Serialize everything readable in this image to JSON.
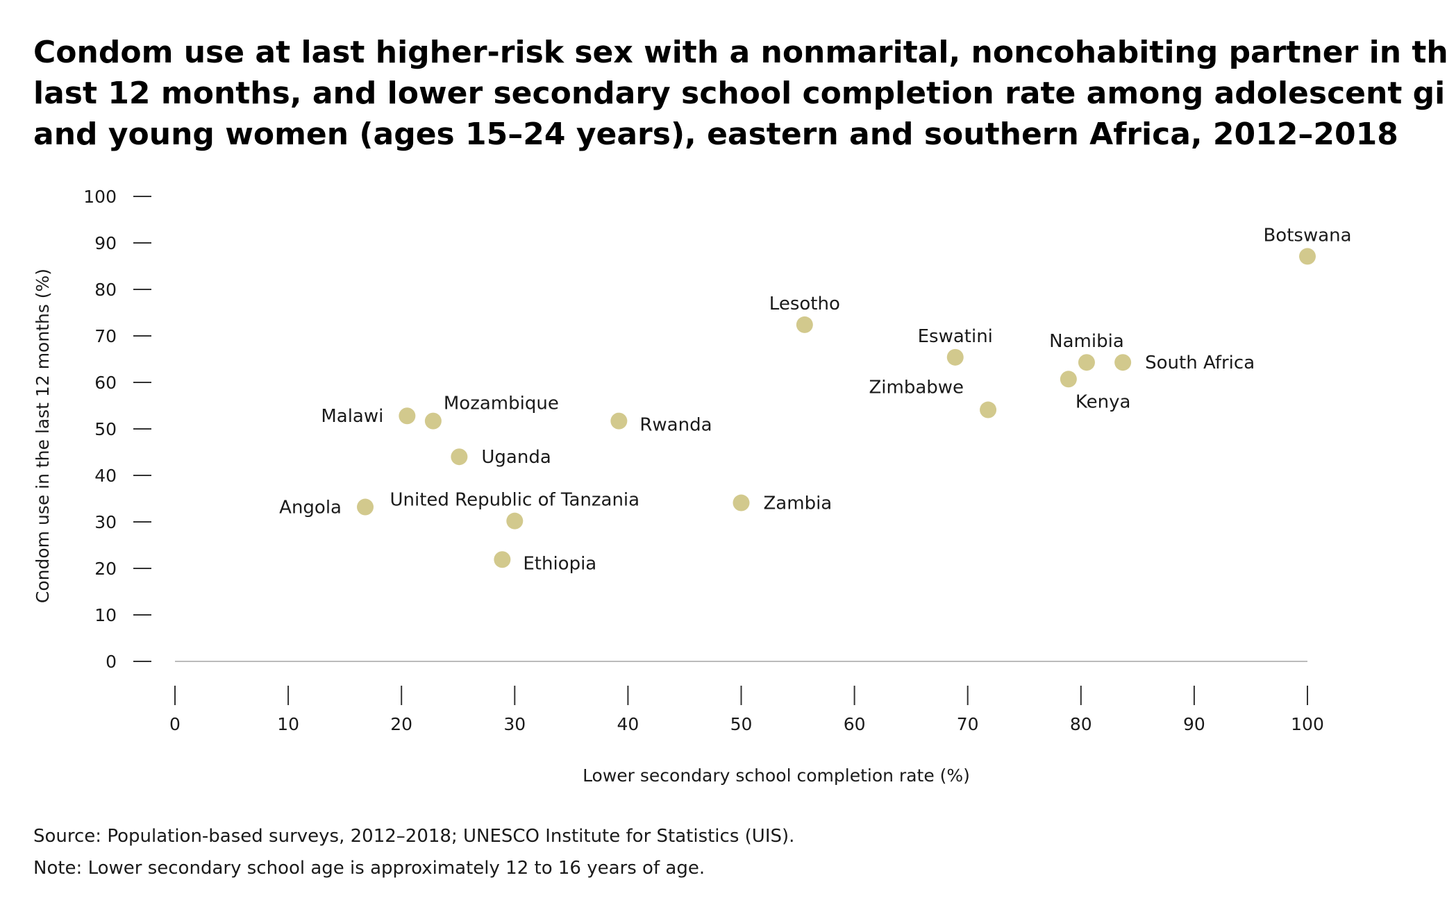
{
  "title_lines": [
    "Condom use at last higher-risk sex with a nonmarital, noncohabiting partner in the",
    "last 12 months, and lower secondary school completion rate among adolescent girls",
    "and young women (ages 15–24 years), eastern and southern Africa, 2012–2018"
  ],
  "colors": {
    "point": "#d2c98d",
    "axis": "#333333",
    "baseline": "#bbbbbb"
  },
  "chart_data": {
    "type": "scatter",
    "title": "Condom use at last higher-risk sex with a nonmarital, noncohabiting partner in the last 12 months, and lower secondary school completion rate among adolescent girls and young women (ages 15–24 years), eastern and southern Africa, 2012–2018",
    "xlabel": "Lower secondary school completion rate (%)",
    "ylabel": "Condom use in the last 12 months (%)",
    "xlim": [
      0,
      100
    ],
    "ylim": [
      0,
      100
    ],
    "xticks": [
      "0",
      "10",
      "20",
      "30",
      "40",
      "50",
      "60",
      "70",
      "80",
      "90",
      "100"
    ],
    "yticks": [
      "0",
      "10",
      "20",
      "30",
      "40",
      "50",
      "60",
      "70",
      "80",
      "90",
      "100"
    ],
    "grid": false,
    "points": [
      {
        "label": "Angola",
        "x": 16.8,
        "y": 33.2,
        "label_pos": "left"
      },
      {
        "label": "Malawi",
        "x": 20.5,
        "y": 52.8,
        "label_pos": "left"
      },
      {
        "label": "Mozambique",
        "x": 22.8,
        "y": 51.7,
        "label_pos": "above-right"
      },
      {
        "label": "Uganda",
        "x": 25.1,
        "y": 44.0,
        "label_pos": "right"
      },
      {
        "label": "Ethiopia",
        "x": 28.9,
        "y": 21.9,
        "label_pos": "right-below"
      },
      {
        "label": "United Republic of Tanzania",
        "x": 30.0,
        "y": 30.2,
        "label_pos": "above"
      },
      {
        "label": "Rwanda",
        "x": 39.2,
        "y": 51.7,
        "label_pos": "right-below"
      },
      {
        "label": "Zambia",
        "x": 50.0,
        "y": 34.1,
        "label_pos": "right"
      },
      {
        "label": "Lesotho",
        "x": 55.6,
        "y": 72.4,
        "label_pos": "above"
      },
      {
        "label": "Eswatini",
        "x": 68.9,
        "y": 65.4,
        "label_pos": "above"
      },
      {
        "label": "Zimbabwe",
        "x": 71.8,
        "y": 54.1,
        "label_pos": "above-left"
      },
      {
        "label": "Kenya",
        "x": 78.9,
        "y": 60.7,
        "label_pos": "below-right"
      },
      {
        "label": "Namibia",
        "x": 80.5,
        "y": 64.3,
        "label_pos": "above"
      },
      {
        "label": "South Africa",
        "x": 83.7,
        "y": 64.3,
        "label_pos": "right"
      },
      {
        "label": "Botswana",
        "x": 100.0,
        "y": 87.1,
        "label_pos": "above"
      }
    ]
  },
  "footer": {
    "source": "Source: Population-based surveys, 2012–2018; UNESCO Institute for Statistics (UIS).",
    "note": "Note: Lower secondary school age is approximately 12 to 16 years of age."
  }
}
